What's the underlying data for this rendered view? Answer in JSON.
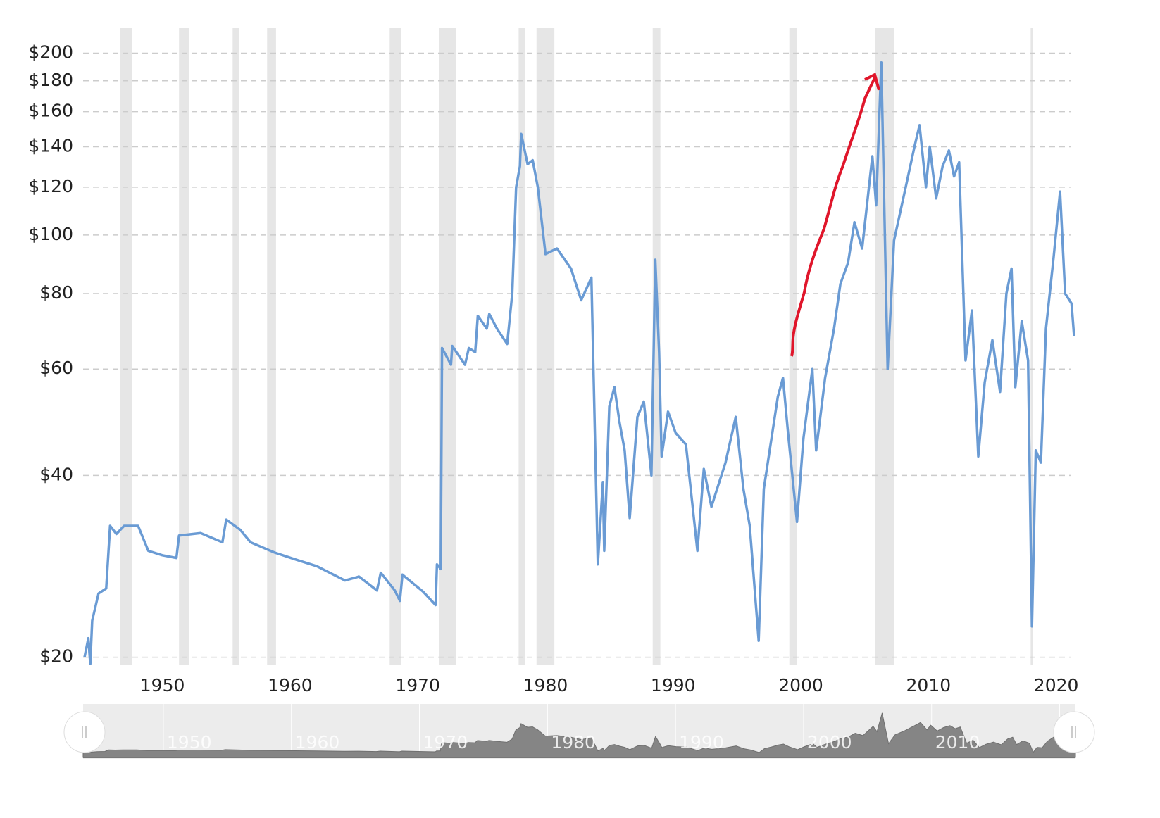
{
  "chart_data": {
    "type": "line",
    "x": [
      1943.9,
      1944.2,
      1944.35,
      1944.5,
      1945.0,
      1945.6,
      1945.9,
      1946.4,
      1947.0,
      1948.1,
      1948.9,
      1950.0,
      1951.1,
      1951.3,
      1953.0,
      1954.7,
      1955.0,
      1956.1,
      1956.9,
      1958.8,
      1960.5,
      1962.1,
      1964.3,
      1965.4,
      1966.8,
      1967.1,
      1968.2,
      1968.6,
      1968.8,
      1970.4,
      1971.4,
      1971.5,
      1971.8,
      1971.9,
      1972.6,
      1972.7,
      1973.7,
      1974.0,
      1974.5,
      1974.7,
      1975.4,
      1975.6,
      1976.2,
      1977.0,
      1977.4,
      1977.7,
      1978.0,
      1978.1,
      1978.6,
      1979.0,
      1979.4,
      1980.0,
      1980.9,
      1982.0,
      1982.8,
      1983.6,
      1984.1,
      1984.5,
      1984.6,
      1985.0,
      1985.4,
      1985.8,
      1986.2,
      1986.6,
      1987.2,
      1987.7,
      1988.3,
      1988.6,
      1988.9,
      1989.1,
      1989.6,
      1990.2,
      1991.0,
      1991.9,
      1992.4,
      1993.0,
      1994.1,
      1994.9,
      1995.5,
      1996.0,
      1996.7,
      1997.1,
      1997.7,
      1998.2,
      1998.6,
      1999.0,
      1999.7,
      2000.2,
      2000.9,
      2001.2,
      2001.9,
      2002.6,
      2003.1,
      2003.7,
      2004.2,
      2004.8,
      2005.6,
      2005.9,
      2006.3,
      2006.8,
      2007.3,
      2008.1,
      2008.9,
      2009.3,
      2009.8,
      2010.1,
      2010.6,
      2011.1,
      2011.6,
      2012.0,
      2012.4,
      2012.9,
      2013.4,
      2013.9,
      2014.4,
      2015.0,
      2015.6,
      2016.1,
      2016.5,
      2016.8,
      2017.3,
      2017.8,
      2018.1,
      2018.4,
      2018.8,
      2019.2,
      2019.8,
      2020.3,
      2020.7,
      2021.2,
      2021.4
    ],
    "series": [
      {
        "color": "#6a9bd4",
        "values": [
          20,
          21.5,
          19.5,
          23,
          25.5,
          26,
          33,
          32,
          33,
          33,
          30,
          29.5,
          29.2,
          31.8,
          32.1,
          31,
          33.8,
          32.5,
          31,
          29.8,
          29,
          28.3,
          26.8,
          27.2,
          25.8,
          27.6,
          25.8,
          24.8,
          27.4,
          25.7,
          24.4,
          28.5,
          28,
          65,
          61,
          65.5,
          61,
          65,
          64,
          73.5,
          70,
          74,
          70,
          66,
          80,
          120,
          130,
          147,
          131,
          133,
          120,
          93,
          95,
          88,
          78,
          85,
          28.5,
          39,
          30,
          52,
          56,
          49,
          44,
          34,
          50,
          53,
          40,
          91,
          64,
          43,
          51,
          47,
          45,
          30,
          41,
          35.5,
          42,
          50,
          38,
          33,
          21.3,
          38,
          46,
          54,
          58,
          47,
          33.5,
          46,
          60,
          44,
          58,
          70,
          83,
          90,
          105,
          95,
          135,
          112,
          193,
          60,
          98,
          117,
          140,
          152,
          120,
          140,
          115,
          130,
          138,
          125,
          132,
          62,
          75,
          43,
          57,
          67,
          55,
          80,
          88,
          56,
          72,
          62,
          22.5,
          44,
          42,
          70,
          92,
          118,
          80,
          77,
          68
        ]
      }
    ],
    "shaded_ranges": [
      [
        1946.7,
        1947.6
      ],
      [
        1951.3,
        1952.1
      ],
      [
        1955.5,
        1956.0
      ],
      [
        1958.2,
        1958.9
      ],
      [
        1967.8,
        1968.7
      ],
      [
        1971.7,
        1973.0
      ],
      [
        1977.9,
        1978.4
      ],
      [
        1979.3,
        1980.7
      ],
      [
        1988.4,
        1989.0
      ],
      [
        1999.1,
        1999.7
      ],
      [
        2005.8,
        2007.3
      ],
      [
        2018.0,
        2018.2
      ]
    ],
    "shade_color": "#e6e6e6",
    "xlim": [
      1943.9,
      2021.4
    ],
    "xticks": [
      1950,
      1960,
      1970,
      1980,
      1990,
      2000,
      2010,
      2020
    ],
    "ylim": [
      19.4,
      220
    ],
    "log_scale": true,
    "grid": true,
    "yticks": [
      {
        "value": 20,
        "label": "$20"
      },
      {
        "value": 40,
        "label": "$40"
      },
      {
        "value": 60,
        "label": "$60"
      },
      {
        "value": 80,
        "label": "$80"
      },
      {
        "value": 100,
        "label": "$100"
      },
      {
        "value": 120,
        "label": "$120"
      },
      {
        "value": 140,
        "label": "$140"
      },
      {
        "value": 160,
        "label": "$160"
      },
      {
        "value": 180,
        "label": "$180"
      },
      {
        "value": 200,
        "label": "$200"
      }
    ]
  }
}
